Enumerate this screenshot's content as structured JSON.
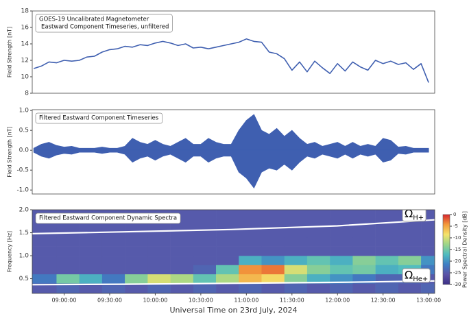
{
  "chart_data": [
    {
      "type": "line",
      "title": [
        "GOES-19 Uncalibrated Magnetometer",
        "Eastward Component Timeseries, unfiltered"
      ],
      "ylabel": "Field Strength [nT]",
      "color": "#3f5fb0",
      "x": [
        520,
        525,
        530,
        535,
        540,
        545,
        550,
        555,
        560,
        565,
        570,
        575,
        580,
        585,
        590,
        595,
        600,
        605,
        610,
        615,
        620,
        625,
        630,
        635,
        640,
        645,
        650,
        655,
        660,
        665,
        670,
        675,
        680,
        685,
        690,
        695,
        700,
        705,
        710,
        715,
        720,
        725,
        730,
        735,
        740,
        745,
        750,
        755,
        760,
        765,
        770,
        775,
        780
      ],
      "values": [
        11.0,
        11.3,
        11.8,
        11.7,
        12.0,
        11.9,
        12.0,
        12.4,
        12.5,
        13.0,
        13.3,
        13.4,
        13.7,
        13.6,
        13.9,
        13.8,
        14.1,
        14.3,
        14.1,
        13.8,
        14.0,
        13.5,
        13.6,
        13.4,
        13.6,
        13.8,
        14.0,
        14.2,
        14.6,
        14.3,
        14.2,
        13.0,
        12.8,
        12.2,
        10.8,
        11.8,
        10.6,
        11.9,
        11.1,
        10.4,
        11.6,
        10.7,
        11.8,
        11.2,
        10.8,
        12.0,
        11.6,
        11.9,
        11.5,
        11.7,
        10.9,
        11.6,
        9.3
      ],
      "xlim": [
        519,
        784
      ],
      "ylim": [
        8,
        18
      ],
      "yticks": [
        8,
        10,
        12,
        14,
        16,
        18
      ]
    },
    {
      "type": "band",
      "title": "Filtered Eastward Component Timeseries",
      "ylabel": "Field Strength [nT]",
      "color": "#3f5fb0",
      "x": [
        520,
        525,
        530,
        535,
        540,
        545,
        550,
        555,
        560,
        565,
        570,
        575,
        580,
        585,
        590,
        595,
        600,
        605,
        610,
        615,
        620,
        625,
        630,
        635,
        640,
        645,
        650,
        655,
        660,
        665,
        670,
        675,
        680,
        685,
        690,
        695,
        700,
        705,
        710,
        715,
        720,
        725,
        730,
        735,
        740,
        745,
        750,
        755,
        760,
        765,
        770,
        775,
        780
      ],
      "upper": [
        0.05,
        0.15,
        0.2,
        0.12,
        0.08,
        0.1,
        0.05,
        0.05,
        0.05,
        0.08,
        0.05,
        0.05,
        0.1,
        0.3,
        0.2,
        0.15,
        0.25,
        0.15,
        0.1,
        0.2,
        0.3,
        0.15,
        0.15,
        0.3,
        0.2,
        0.15,
        0.15,
        0.5,
        0.75,
        0.9,
        0.5,
        0.4,
        0.55,
        0.35,
        0.5,
        0.3,
        0.15,
        0.2,
        0.1,
        0.15,
        0.2,
        0.1,
        0.2,
        0.1,
        0.15,
        0.1,
        0.3,
        0.25,
        0.08,
        0.1,
        0.05,
        0.05,
        0.05
      ],
      "lower": [
        -0.05,
        -0.15,
        -0.2,
        -0.12,
        -0.08,
        -0.1,
        -0.05,
        -0.05,
        -0.05,
        -0.08,
        -0.05,
        -0.05,
        -0.1,
        -0.3,
        -0.2,
        -0.15,
        -0.25,
        -0.15,
        -0.1,
        -0.2,
        -0.3,
        -0.15,
        -0.15,
        -0.3,
        -0.2,
        -0.15,
        -0.15,
        -0.55,
        -0.7,
        -0.95,
        -0.55,
        -0.45,
        -0.5,
        -0.35,
        -0.5,
        -0.3,
        -0.15,
        -0.2,
        -0.1,
        -0.15,
        -0.2,
        -0.1,
        -0.2,
        -0.1,
        -0.15,
        -0.1,
        -0.3,
        -0.25,
        -0.08,
        -0.1,
        -0.05,
        -0.05,
        -0.05
      ],
      "xlim": [
        519,
        784
      ],
      "ylim": [
        -1.1,
        1.02
      ],
      "yticks": [
        {
          "value": -1,
          "label": "-1.0"
        },
        -0.5,
        {
          "value": 0,
          "label": "0.0"
        },
        0.5,
        {
          "value": 1,
          "label": "1.0"
        }
      ]
    },
    {
      "type": "heatmap",
      "title": "Filtered Eastward Component Dynamic Spectra",
      "ylabel": "Frequency [Hz]",
      "xlabel": "Universal Time on 23rd July, 2024",
      "xbins": [
        519,
        535,
        550,
        565,
        580,
        595,
        610,
        625,
        640,
        655,
        670,
        685,
        700,
        715,
        730,
        745,
        760,
        775,
        784
      ],
      "ybins": [
        0.18,
        0.4,
        0.6,
        0.8,
        1.0,
        1.2,
        1.4,
        1.6,
        1.8,
        2.0
      ],
      "z": [
        [
          -25,
          -24,
          -25,
          -24,
          -25,
          -24,
          -25,
          -24,
          -25,
          -24,
          -25,
          -24,
          -25,
          -24,
          -25,
          -24,
          -25,
          -24
        ],
        [
          -22,
          -15,
          -18,
          -22,
          -14,
          -10,
          -12,
          -16,
          -12,
          -6,
          -8,
          -14,
          -18,
          -20,
          -22,
          -24,
          -24,
          -25
        ],
        [
          -25,
          -25,
          -25,
          -25,
          -25,
          -25,
          -25,
          -24,
          -16,
          -4,
          -3,
          -10,
          -14,
          -16,
          -15,
          -18,
          -17,
          -22
        ],
        [
          -25,
          -25,
          -25,
          -25,
          -25,
          -25,
          -25,
          -25,
          -25,
          -18,
          -20,
          -18,
          -16,
          -18,
          -14,
          -16,
          -14,
          -20
        ],
        [
          -25,
          -25,
          -25,
          -25,
          -25,
          -25,
          -25,
          -25,
          -25,
          -25,
          -25,
          -25,
          -25,
          -25,
          -25,
          -25,
          -25,
          -25
        ],
        [
          -25,
          -25,
          -25,
          -25,
          -25,
          -25,
          -25,
          -25,
          -25,
          -25,
          -25,
          -25,
          -25,
          -25,
          -25,
          -25,
          -25,
          -25
        ],
        [
          -25,
          -25,
          -25,
          -25,
          -25,
          -25,
          -25,
          -25,
          -25,
          -25,
          -25,
          -25,
          -25,
          -25,
          -25,
          -25,
          -25,
          -25
        ],
        [
          -25,
          -25,
          -25,
          -25,
          -25,
          -25,
          -25,
          -25,
          -25,
          -25,
          -25,
          -25,
          -25,
          -25,
          -25,
          -25,
          -25,
          -25
        ],
        [
          -25,
          -25,
          -25,
          -25,
          -25,
          -25,
          -25,
          -25,
          -25,
          -25,
          -25,
          -25,
          -25,
          -25,
          -25,
          -25,
          -25,
          -25
        ]
      ],
      "lines": [
        {
          "color": "#ffffff",
          "x": [
            519,
            580,
            650,
            720,
            784
          ],
          "values": [
            1.48,
            1.52,
            1.57,
            1.65,
            1.78
          ]
        },
        {
          "color": "#ffffff",
          "x": [
            519,
            580,
            650,
            720,
            784
          ],
          "values": [
            0.37,
            0.38,
            0.4,
            0.42,
            0.45
          ]
        }
      ],
      "annotations": [
        {
          "text": "Ω",
          "sub": "H+"
        },
        {
          "text": "Ω",
          "sub": "He+"
        }
      ],
      "xlim": [
        519,
        784
      ],
      "ylim": [
        0.18,
        2.0
      ],
      "yticks": [
        0.5,
        {
          "value": 1,
          "label": "1.0"
        },
        1.5,
        {
          "value": 2,
          "label": "2.0"
        }
      ],
      "xticks": [
        {
          "value": 540,
          "label": "09:00:00"
        },
        {
          "value": 570,
          "label": "09:30:00"
        },
        {
          "value": 600,
          "label": "10:00:00"
        },
        {
          "value": 630,
          "label": "10:30:00"
        },
        {
          "value": 660,
          "label": "11:00:00"
        },
        {
          "value": 690,
          "label": "11:30:00"
        },
        {
          "value": 720,
          "label": "12:00:00"
        },
        {
          "value": 750,
          "label": "12:30:00"
        },
        {
          "value": 780,
          "label": "13:00:00"
        }
      ],
      "colorbar": {
        "label": "Power Spectral Density [dB]",
        "lim": [
          -30,
          0
        ],
        "ticks": [
          -30,
          -25,
          -20,
          -15,
          -10,
          -5,
          0
        ],
        "colors": [
          "#3d2f86",
          "#5b53a6",
          "#3f7fc4",
          "#4fbcc0",
          "#9bd58a",
          "#f4e36b",
          "#f39a3c",
          "#d7262e"
        ]
      }
    }
  ]
}
